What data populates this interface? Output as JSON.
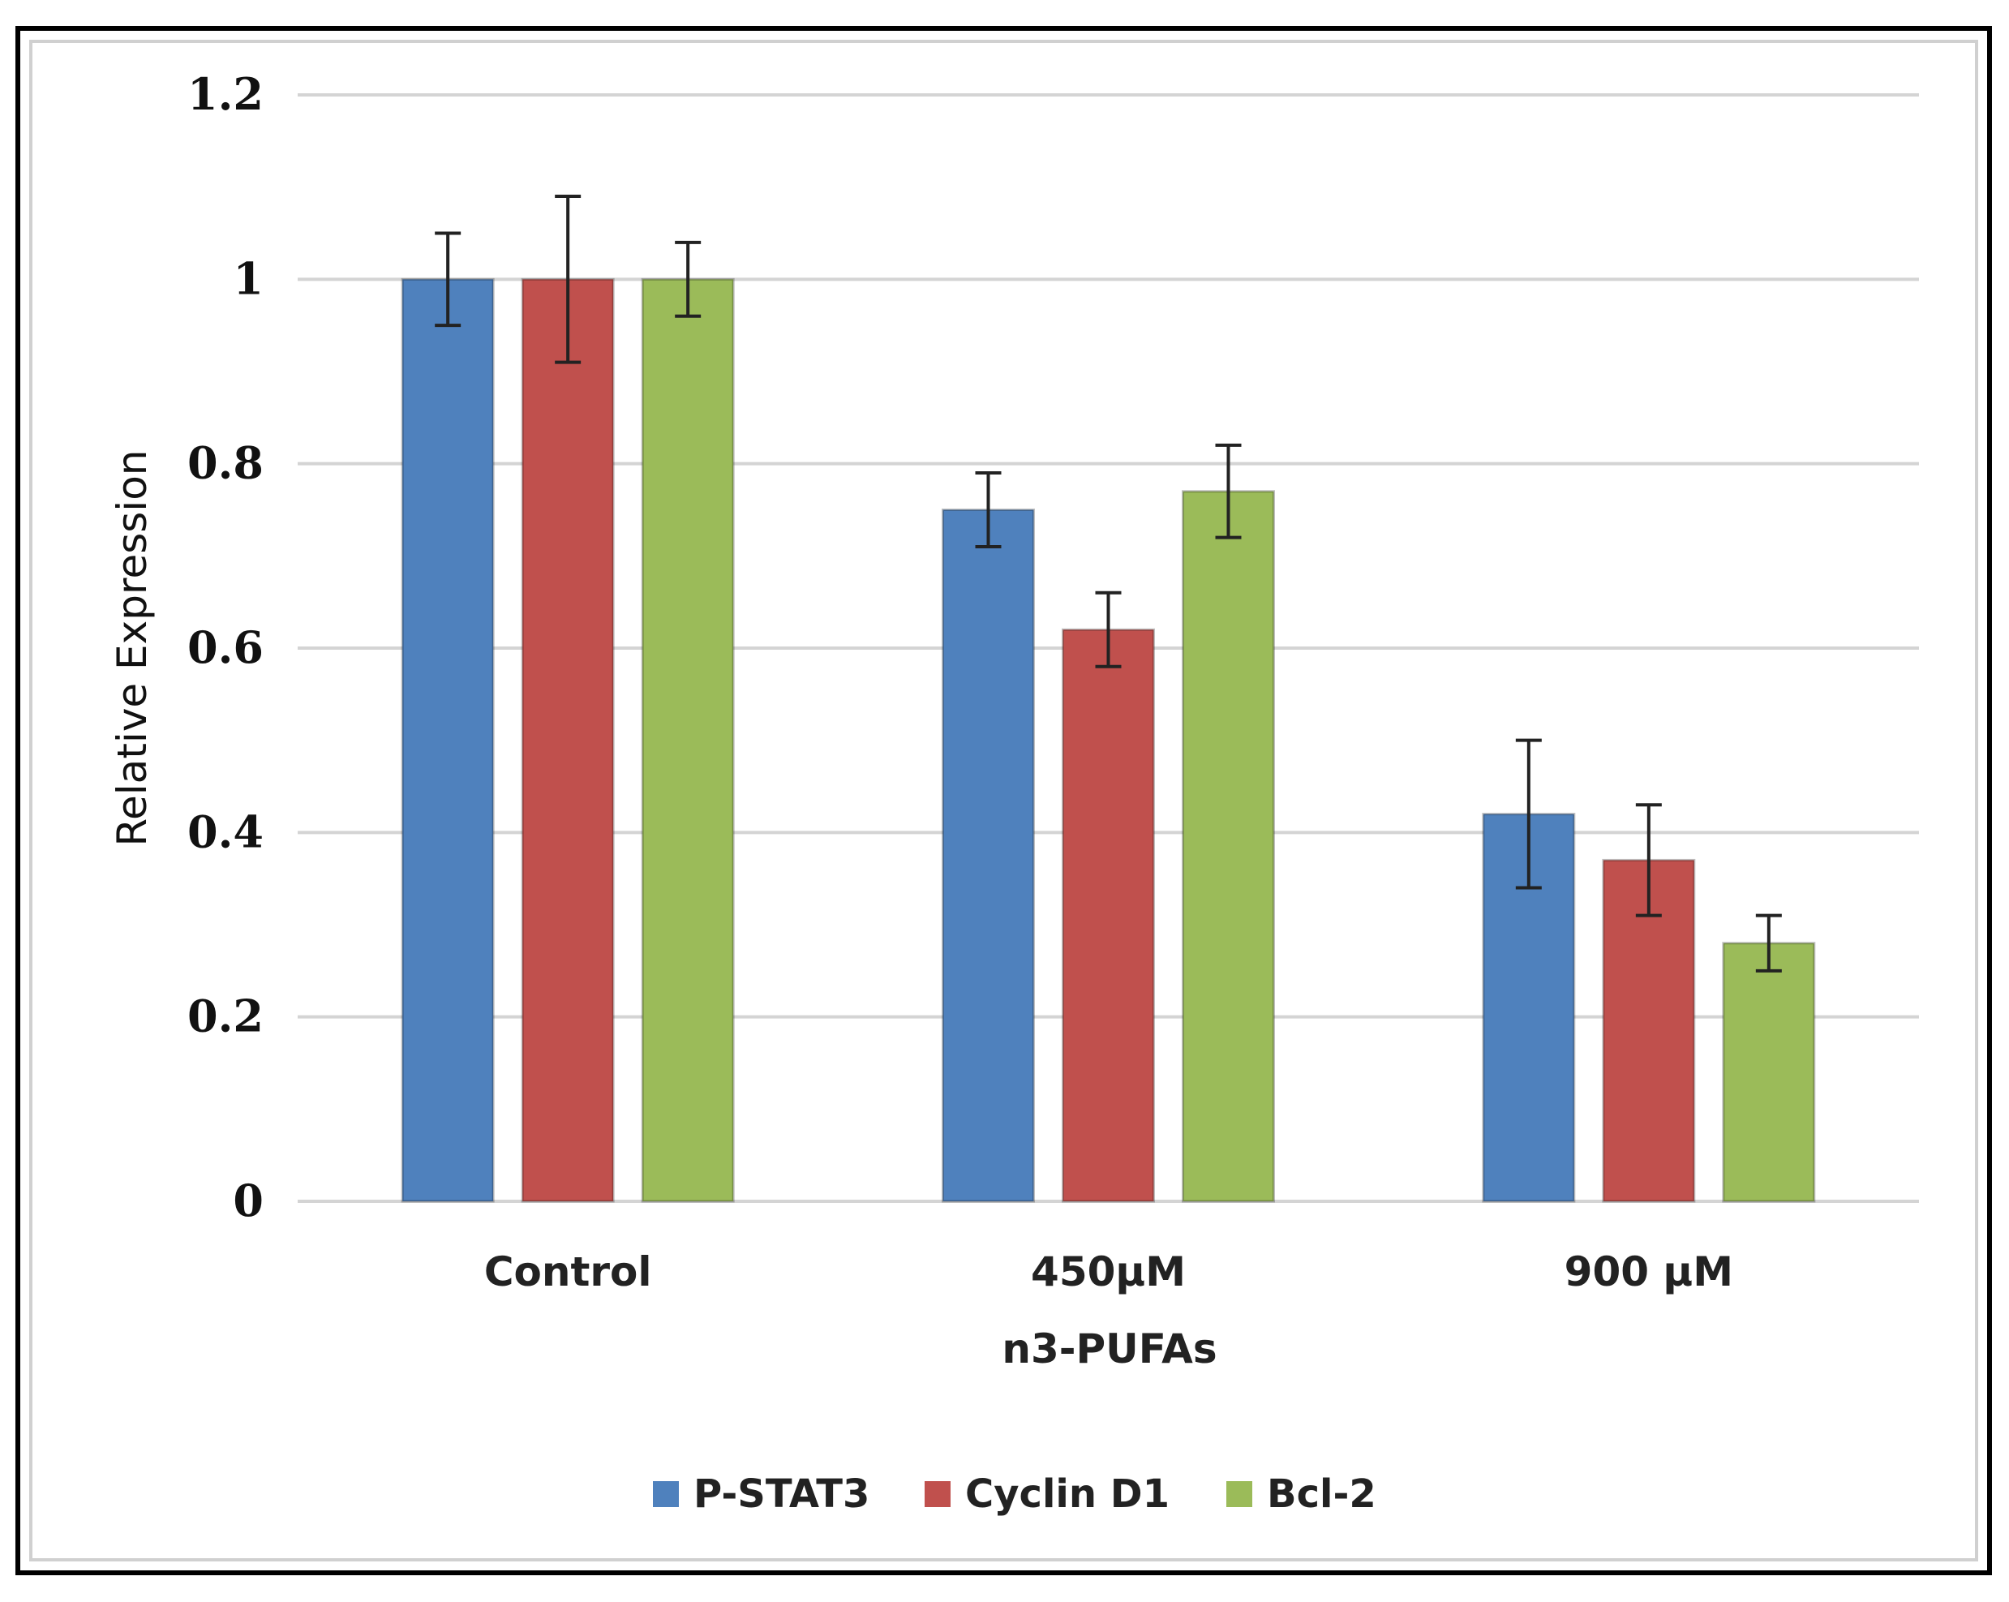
{
  "chart_data": {
    "type": "bar",
    "title": "",
    "xlabel": "n3-PUFAs",
    "ylabel": "Relative Expression",
    "ylim": [
      0,
      1.2
    ],
    "yticks": [
      "0",
      "0.2",
      "0.4",
      "0.6",
      "0.8",
      "1",
      "1.2"
    ],
    "grid": true,
    "legend_position": "bottom",
    "categories": [
      "Control",
      "450µM",
      "900 µM"
    ],
    "series": [
      {
        "name": "P-STAT3",
        "color": "#4f81bd",
        "values": [
          1.0,
          0.75,
          0.42
        ],
        "errors": [
          0.05,
          0.04,
          0.08
        ]
      },
      {
        "name": "Cyclin D1",
        "color": "#c0504d",
        "values": [
          1.0,
          0.62,
          0.37
        ],
        "errors": [
          0.09,
          0.04,
          0.06
        ]
      },
      {
        "name": "Bcl-2",
        "color": "#9bbb59",
        "values": [
          1.0,
          0.77,
          0.28
        ],
        "errors": [
          0.04,
          0.05,
          0.03
        ]
      }
    ]
  }
}
